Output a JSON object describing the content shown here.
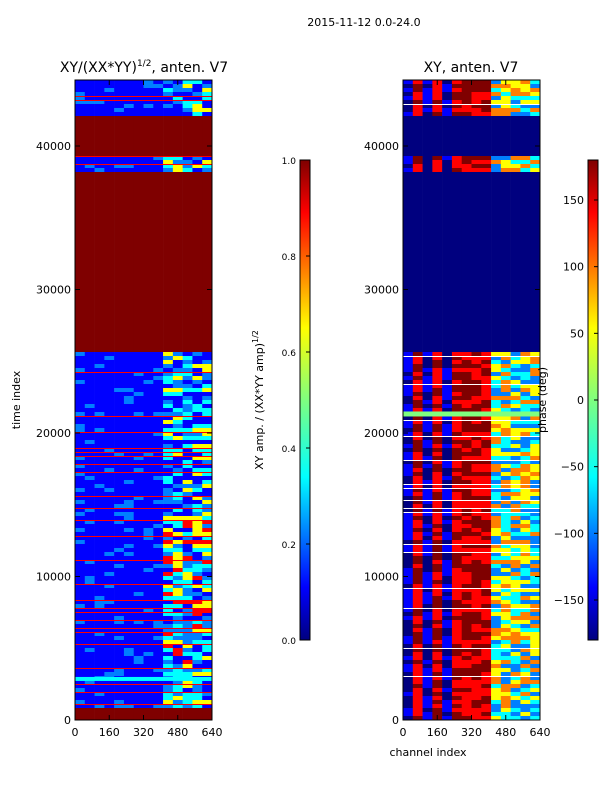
{
  "suptitle": "2015-11-12 0.0-24.0",
  "xlabel_shared": "channel index",
  "chart_data": [
    {
      "type": "heatmap",
      "title_main": "XY/(XX*YY)",
      "title_sup": "1/2",
      "title_suffix": ", anten. V7",
      "ylabel": "time index",
      "xlim": [
        0,
        640
      ],
      "ylim": [
        0,
        44600
      ],
      "xticks": [
        0,
        160,
        320,
        480,
        640
      ],
      "yticks": [
        0,
        10000,
        20000,
        30000,
        40000
      ],
      "xtick_labels": [
        "0",
        "160",
        "320",
        "480",
        "640"
      ],
      "ytick_labels": [
        "0",
        "10000",
        "20000",
        "30000",
        "40000"
      ],
      "colorbar": {
        "label_main": "XY amp. / (XX*YY amp)",
        "label_sup": "1/2",
        "range": [
          0.0,
          1.0
        ],
        "ticks": [
          0.0,
          0.2,
          0.4,
          0.6,
          0.8,
          1.0
        ],
        "tick_labels": [
          "0.0",
          "0.2",
          "0.4",
          "0.6",
          "0.8",
          "1.0"
        ]
      },
      "saturated_time_ranges": [
        [
          0,
          800
        ],
        [
          25700,
          38200
        ],
        [
          39300,
          42000
        ]
      ],
      "colormap": [
        "#00007f",
        "#0000ff",
        "#007fff",
        "#00ffff",
        "#7fff7f",
        "#ffff00",
        "#ff7f00",
        "#ff0000",
        "#7f0000"
      ]
    },
    {
      "type": "heatmap",
      "title": "XY, anten. V7",
      "xlim": [
        0,
        640
      ],
      "ylim": [
        0,
        44600
      ],
      "xticks": [
        0,
        160,
        320,
        480,
        640
      ],
      "yticks": [
        0,
        10000,
        20000,
        30000,
        40000
      ],
      "xtick_labels": [
        "0",
        "160",
        "320",
        "480",
        "640"
      ],
      "ytick_labels": [
        "0",
        "10000",
        "20000",
        "30000",
        "40000"
      ],
      "colorbar": {
        "label": "phase (deg)",
        "range": [
          -180,
          180
        ],
        "ticks": [
          -150,
          -100,
          -50,
          0,
          50,
          100,
          150
        ],
        "tick_labels": [
          "−150",
          "−100",
          "−50",
          "0",
          "50",
          "100",
          "150"
        ]
      },
      "low_phase_time_ranges": [
        [
          25700,
          38200
        ],
        [
          39300,
          42000
        ]
      ],
      "colormap": [
        "#00007f",
        "#0000ff",
        "#007fff",
        "#00ffff",
        "#7fff7f",
        "#ffff00",
        "#ff7f00",
        "#ff0000",
        "#7f0000"
      ]
    }
  ]
}
